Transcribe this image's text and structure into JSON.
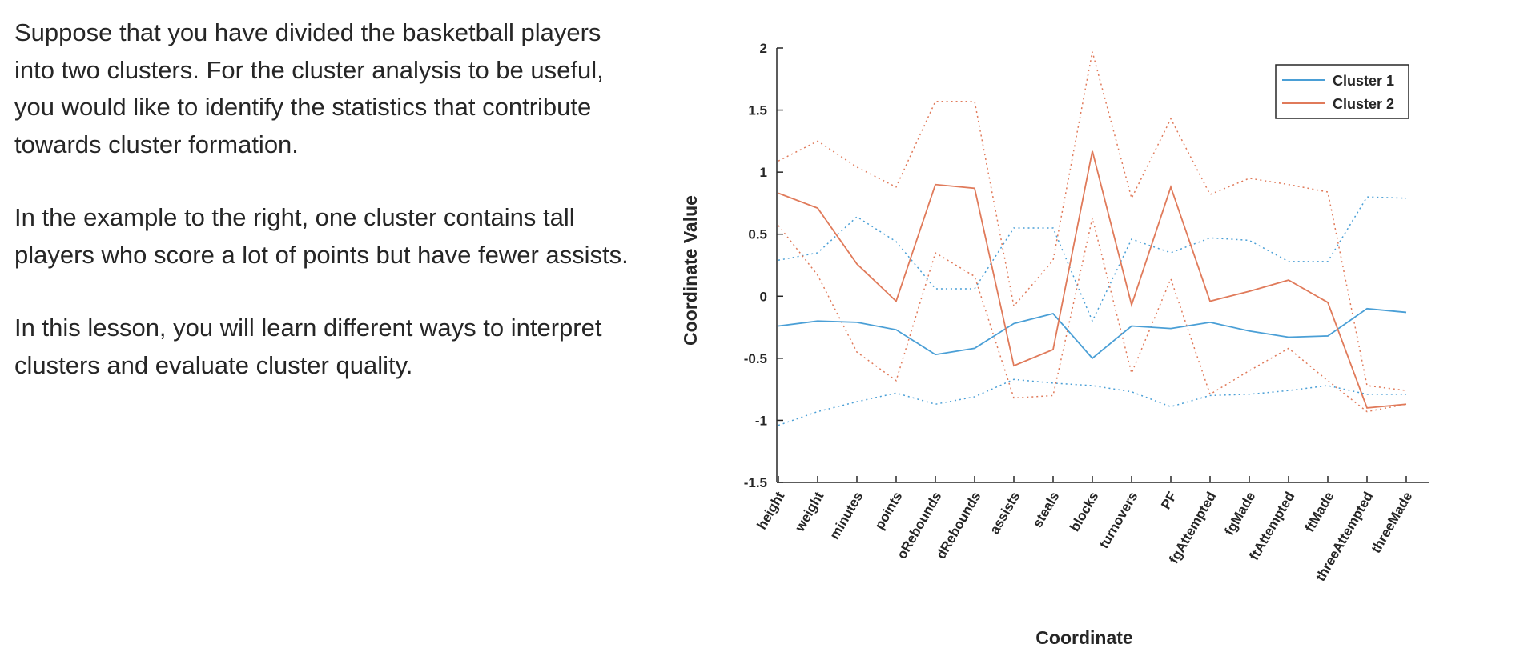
{
  "text": {
    "paragraphs": [
      "Suppose that you have divided the basketball players into two clusters. For the cluster analysis to be useful, you would like to identify the statistics that contribute towards cluster formation.",
      "In the example to the right, one cluster contains tall players who score a lot of points but have fewer assists.",
      "In this lesson, you will learn different ways to interpret clusters and evaluate cluster quality."
    ]
  },
  "chart_data": {
    "type": "line",
    "xlabel": "Coordinate",
    "ylabel": "Coordinate Value",
    "ylim": [
      -1.5,
      2
    ],
    "yticks": [
      2,
      1.5,
      1,
      0.5,
      0,
      -0.5,
      -1,
      -1.5
    ],
    "ytick_labels": [
      "2",
      "1.5",
      "1",
      "0.5",
      "0",
      "-0.5",
      "-1",
      "-1.5"
    ],
    "categories": [
      "height",
      "weight",
      "minutes",
      "points",
      "oRebounds",
      "dRebounds",
      "assists",
      "steals",
      "blocks",
      "turnovers",
      "PF",
      "fgAttempted",
      "fgMade",
      "ftAttempted",
      "ftMade",
      "threeAttempted",
      "threeMade"
    ],
    "grid": false,
    "legend_position": "top-right",
    "series": [
      {
        "name": "Cluster 1",
        "color": "#4a9fd6",
        "values": [
          -0.24,
          -0.2,
          -0.21,
          -0.27,
          -0.47,
          -0.42,
          -0.22,
          -0.14,
          -0.5,
          -0.24,
          -0.26,
          -0.21,
          -0.28,
          -0.33,
          -0.32,
          -0.1,
          -0.13
        ],
        "upper": [
          0.29,
          0.35,
          0.64,
          0.44,
          0.06,
          0.06,
          0.55,
          0.55,
          -0.2,
          0.46,
          0.35,
          0.47,
          0.45,
          0.28,
          0.28,
          0.8,
          0.79
        ],
        "lower": [
          -1.04,
          -0.93,
          -0.85,
          -0.78,
          -0.87,
          -0.81,
          -0.67,
          -0.7,
          -0.72,
          -0.77,
          -0.89,
          -0.8,
          -0.79,
          -0.76,
          -0.72,
          -0.79,
          -0.79
        ]
      },
      {
        "name": "Cluster 2",
        "color": "#e07a5a",
        "values": [
          0.83,
          0.71,
          0.26,
          -0.04,
          0.9,
          0.87,
          -0.56,
          -0.43,
          1.17,
          -0.07,
          0.88,
          -0.04,
          0.04,
          0.13,
          -0.05,
          -0.9,
          -0.87
        ],
        "upper": [
          1.09,
          1.25,
          1.04,
          0.88,
          1.57,
          1.57,
          -0.08,
          0.29,
          1.97,
          0.79,
          1.43,
          0.82,
          0.95,
          0.9,
          0.84,
          -0.72,
          -0.76
        ],
        "lower": [
          0.57,
          0.17,
          -0.45,
          -0.68,
          0.35,
          0.16,
          -0.82,
          -0.8,
          0.63,
          -0.62,
          0.14,
          -0.79,
          -0.6,
          -0.42,
          -0.68,
          -0.93,
          -0.87
        ]
      }
    ]
  }
}
